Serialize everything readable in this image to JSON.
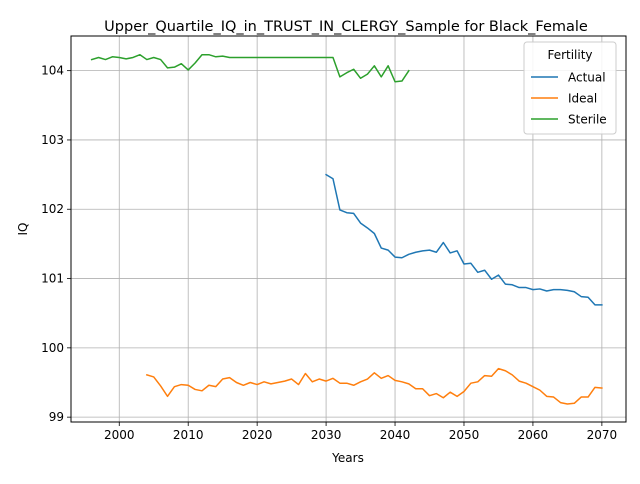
{
  "chart_data": {
    "type": "line",
    "title": "Upper_Quartile_IQ_in_TRUST_IN_CLERGY_Sample for Black_Female",
    "xlabel": "Years",
    "ylabel": "IQ",
    "xlim": [
      1993,
      2073.5
    ],
    "ylim": [
      98.93,
      104.5
    ],
    "xticks": [
      2000,
      2010,
      2020,
      2030,
      2040,
      2050,
      2060,
      2070
    ],
    "yticks": [
      99,
      100,
      101,
      102,
      103,
      104
    ],
    "grid": true,
    "legend": {
      "title": "Fertility",
      "placement": "top-right"
    },
    "series": [
      {
        "name": "Actual",
        "color": "#1f77b4",
        "x": [
          2030,
          2031,
          2032,
          2033,
          2034,
          2035,
          2036,
          2037,
          2038,
          2039,
          2040,
          2041,
          2042,
          2043,
          2044,
          2045,
          2046,
          2047,
          2048,
          2049,
          2050,
          2051,
          2052,
          2053,
          2054,
          2055,
          2056,
          2057,
          2058,
          2059,
          2060,
          2061,
          2062,
          2063,
          2064,
          2065,
          2066,
          2067,
          2068,
          2069,
          2070
        ],
        "y": [
          102.5,
          102.44,
          101.99,
          101.95,
          101.94,
          101.8,
          101.73,
          101.65,
          101.44,
          101.41,
          101.31,
          101.3,
          101.35,
          101.38,
          101.4,
          101.41,
          101.38,
          101.52,
          101.37,
          101.4,
          101.21,
          101.22,
          101.09,
          101.12,
          100.99,
          101.05,
          100.92,
          100.91,
          100.87,
          100.87,
          100.84,
          100.85,
          100.82,
          100.84,
          100.84,
          100.83,
          100.81,
          100.74,
          100.73,
          100.62,
          100.62
        ]
      },
      {
        "name": "Ideal",
        "color": "#ff7f0e",
        "x": [
          2004,
          2005,
          2006,
          2007,
          2008,
          2009,
          2010,
          2011,
          2012,
          2013,
          2014,
          2015,
          2016,
          2017,
          2018,
          2019,
          2020,
          2021,
          2022,
          2023,
          2024,
          2025,
          2026,
          2027,
          2028,
          2029,
          2030,
          2031,
          2032,
          2033,
          2034,
          2035,
          2036,
          2037,
          2038,
          2039,
          2040,
          2041,
          2042,
          2043,
          2044,
          2045,
          2046,
          2047,
          2048,
          2049,
          2050,
          2051,
          2052,
          2053,
          2054,
          2055,
          2056,
          2057,
          2058,
          2059,
          2060,
          2061,
          2062,
          2063,
          2064,
          2065,
          2066,
          2067,
          2068,
          2069,
          2070
        ],
        "y": [
          99.61,
          99.58,
          99.45,
          99.3,
          99.44,
          99.47,
          99.46,
          99.4,
          99.38,
          99.46,
          99.44,
          99.55,
          99.57,
          99.5,
          99.46,
          99.5,
          99.47,
          99.51,
          99.48,
          99.5,
          99.52,
          99.55,
          99.47,
          99.63,
          99.51,
          99.55,
          99.52,
          99.56,
          99.49,
          99.49,
          99.46,
          99.51,
          99.55,
          99.64,
          99.56,
          99.6,
          99.53,
          99.51,
          99.48,
          99.41,
          99.41,
          99.31,
          99.34,
          99.28,
          99.36,
          99.3,
          99.37,
          99.49,
          99.51,
          99.6,
          99.59,
          99.7,
          99.67,
          99.61,
          99.52,
          99.49,
          99.44,
          99.39,
          99.3,
          99.29,
          99.21,
          99.19,
          99.2,
          99.29,
          99.29,
          99.43,
          99.42
        ]
      },
      {
        "name": "Sterile",
        "color": "#2ca02c",
        "x": [
          1996,
          1997,
          1998,
          1999,
          2000,
          2001,
          2002,
          2003,
          2004,
          2005,
          2006,
          2007,
          2008,
          2009,
          2010,
          2011,
          2012,
          2013,
          2014,
          2015,
          2016,
          2017,
          2018,
          2019,
          2020,
          2021,
          2022,
          2023,
          2024,
          2025,
          2026,
          2027,
          2028,
          2029,
          2030,
          2031,
          2032,
          2033,
          2034,
          2035,
          2036,
          2037,
          2038,
          2039,
          2040,
          2041,
          2042
        ],
        "y": [
          104.16,
          104.19,
          104.16,
          104.2,
          104.19,
          104.17,
          104.19,
          104.23,
          104.16,
          104.19,
          104.16,
          104.04,
          104.05,
          104.1,
          104.01,
          104.11,
          104.23,
          104.23,
          104.2,
          104.21,
          104.19,
          104.19,
          104.19,
          104.19,
          104.19,
          104.19,
          104.19,
          104.19,
          104.19,
          104.19,
          104.19,
          104.19,
          104.19,
          104.19,
          104.19,
          104.19,
          103.91,
          103.97,
          104.02,
          103.89,
          103.95,
          104.07,
          103.91,
          104.07,
          103.84,
          103.85,
          104.0
        ]
      }
    ]
  }
}
